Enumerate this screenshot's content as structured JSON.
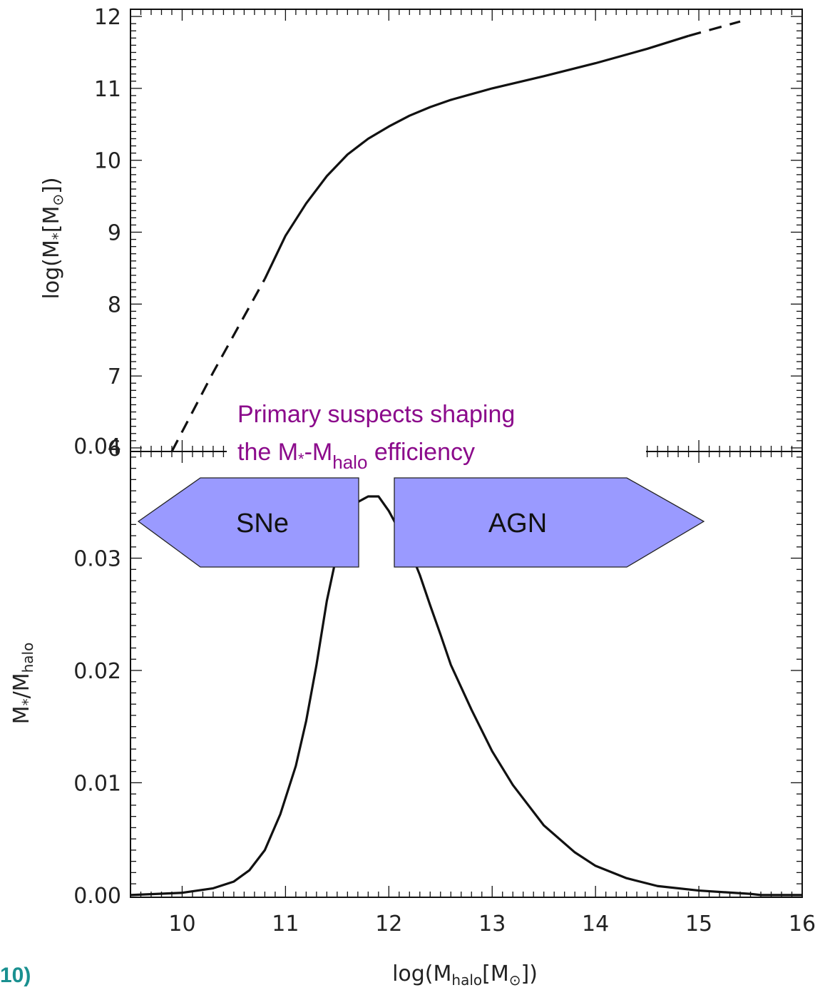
{
  "chart_data": [
    {
      "type": "line",
      "panel": "top",
      "ylabel": {
        "pre": "log(M",
        "sub": "*",
        "mid": "[M",
        "sub2": "⊙",
        "post": "])"
      },
      "xlim": [
        9.5,
        16
      ],
      "ylim": [
        5.95,
        12.1
      ],
      "yticks": [
        6,
        7,
        8,
        9,
        10,
        11,
        12
      ],
      "series": [
        {
          "style": "dashed",
          "x": [
            9.9,
            10.3,
            10.8
          ],
          "y": [
            5.95,
            7.05,
            8.35
          ]
        },
        {
          "style": "solid",
          "x": [
            10.8,
            11.0,
            11.2,
            11.4,
            11.6,
            11.8,
            12.0,
            12.2,
            12.4,
            12.6,
            12.8,
            13.0,
            13.5,
            14.0,
            14.5,
            14.9
          ],
          "y": [
            8.35,
            8.95,
            9.4,
            9.78,
            10.08,
            10.3,
            10.47,
            10.62,
            10.74,
            10.84,
            10.92,
            11.0,
            11.17,
            11.35,
            11.55,
            11.73
          ]
        },
        {
          "style": "dashed",
          "x": [
            14.9,
            15.4
          ],
          "y": [
            11.73,
            11.93
          ]
        }
      ]
    },
    {
      "type": "line",
      "panel": "bottom",
      "ylabel": {
        "pre": "M",
        "sub": "*",
        "mid": "/M",
        "sub2": "halo",
        "post": ""
      },
      "xlabel": {
        "pre": "log(M",
        "sub": "halo",
        "mid": "[M",
        "sub2": "⊙",
        "post": "])"
      },
      "xlim": [
        9.5,
        16
      ],
      "ylim": [
        -0.0002,
        0.0395
      ],
      "xticks": [
        10,
        11,
        12,
        13,
        14,
        15,
        16
      ],
      "yticks": [
        "0.00",
        "0.01",
        "0.02",
        "0.03",
        "0.04"
      ],
      "series": [
        {
          "style": "solid",
          "x": [
            9.5,
            10.0,
            10.3,
            10.5,
            10.65,
            10.8,
            10.95,
            11.1,
            11.2,
            11.3,
            11.4,
            11.5,
            11.6,
            11.7,
            11.8,
            11.9,
            12.0,
            12.1,
            12.2,
            12.3,
            12.4,
            12.5,
            12.6,
            12.8,
            13.0,
            13.2,
            13.5,
            13.8,
            14.0,
            14.3,
            14.6,
            15.0,
            15.5,
            15.6,
            16.0
          ],
          "y": [
            0.0,
            0.0002,
            0.0006,
            0.0012,
            0.0022,
            0.004,
            0.0072,
            0.0115,
            0.0155,
            0.0205,
            0.0262,
            0.0305,
            0.0335,
            0.035,
            0.0355,
            0.0355,
            0.0342,
            0.0325,
            0.0308,
            0.0285,
            0.0258,
            0.0232,
            0.0205,
            0.0165,
            0.0128,
            0.0098,
            0.0062,
            0.0038,
            0.0026,
            0.0015,
            0.0008,
            0.0004,
            0.0001,
            0.0,
            0.0
          ]
        }
      ]
    }
  ],
  "annotation": {
    "line1": "Primary suspects shaping",
    "line2_pre": "the M",
    "line2_sub1": "*",
    "line2_mid": "-M",
    "line2_sub2": "halo",
    "line2_post": " efficiency",
    "color": "#8b0a8b"
  },
  "arrows": {
    "left_label": "SNe",
    "right_label": "AGN",
    "fill": "#9a9aff"
  },
  "corner_text": "10)",
  "corner_color": "#1a9090"
}
